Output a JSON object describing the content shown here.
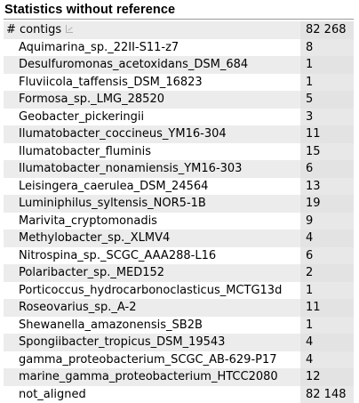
{
  "section": {
    "title": "Statistics without reference"
  },
  "header_row": {
    "label": "# contigs",
    "value": "82 268",
    "icon": "sort-icon"
  },
  "rows": [
    {
      "label": "Aquimarina_sp._22II-S11-z7",
      "value": "8"
    },
    {
      "label": "Desulfuromonas_acetoxidans_DSM_684",
      "value": "1"
    },
    {
      "label": "Fluviicola_taffensis_DSM_16823",
      "value": "1"
    },
    {
      "label": "Formosa_sp._LMG_28520",
      "value": "5"
    },
    {
      "label": "Geobacter_pickeringii",
      "value": "3"
    },
    {
      "label": "Ilumatobacter_coccineus_YM16-304",
      "value": "11"
    },
    {
      "label": "Ilumatobacter_fluminis",
      "value": "15"
    },
    {
      "label": "Ilumatobacter_nonamiensis_YM16-303",
      "value": "6"
    },
    {
      "label": "Leisingera_caerulea_DSM_24564",
      "value": "13"
    },
    {
      "label": "Luminiphilus_syltensis_NOR5-1B",
      "value": "19"
    },
    {
      "label": "Marivita_cryptomonadis",
      "value": "9"
    },
    {
      "label": "Methylobacter_sp._XLMV4",
      "value": "4"
    },
    {
      "label": "Nitrospina_sp._SCGC_AAA288-L16",
      "value": "6"
    },
    {
      "label": "Polaribacter_sp._MED152",
      "value": "2"
    },
    {
      "label": "Porticoccus_hydrocarbonoclasticus_MCTG13d",
      "value": "1"
    },
    {
      "label": "Roseovarius_sp._A-2",
      "value": "11"
    },
    {
      "label": "Shewanella_amazonensis_SB2B",
      "value": "1"
    },
    {
      "label": "Spongiibacter_tropicus_DSM_19543",
      "value": "4"
    },
    {
      "label": "gamma_proteobacterium_SCGC_AB-629-P17",
      "value": "4"
    },
    {
      "label": "marine_gamma_proteobacterium_HTCC2080",
      "value": "12"
    },
    {
      "label": "not_aligned",
      "value": "82 148"
    }
  ]
}
